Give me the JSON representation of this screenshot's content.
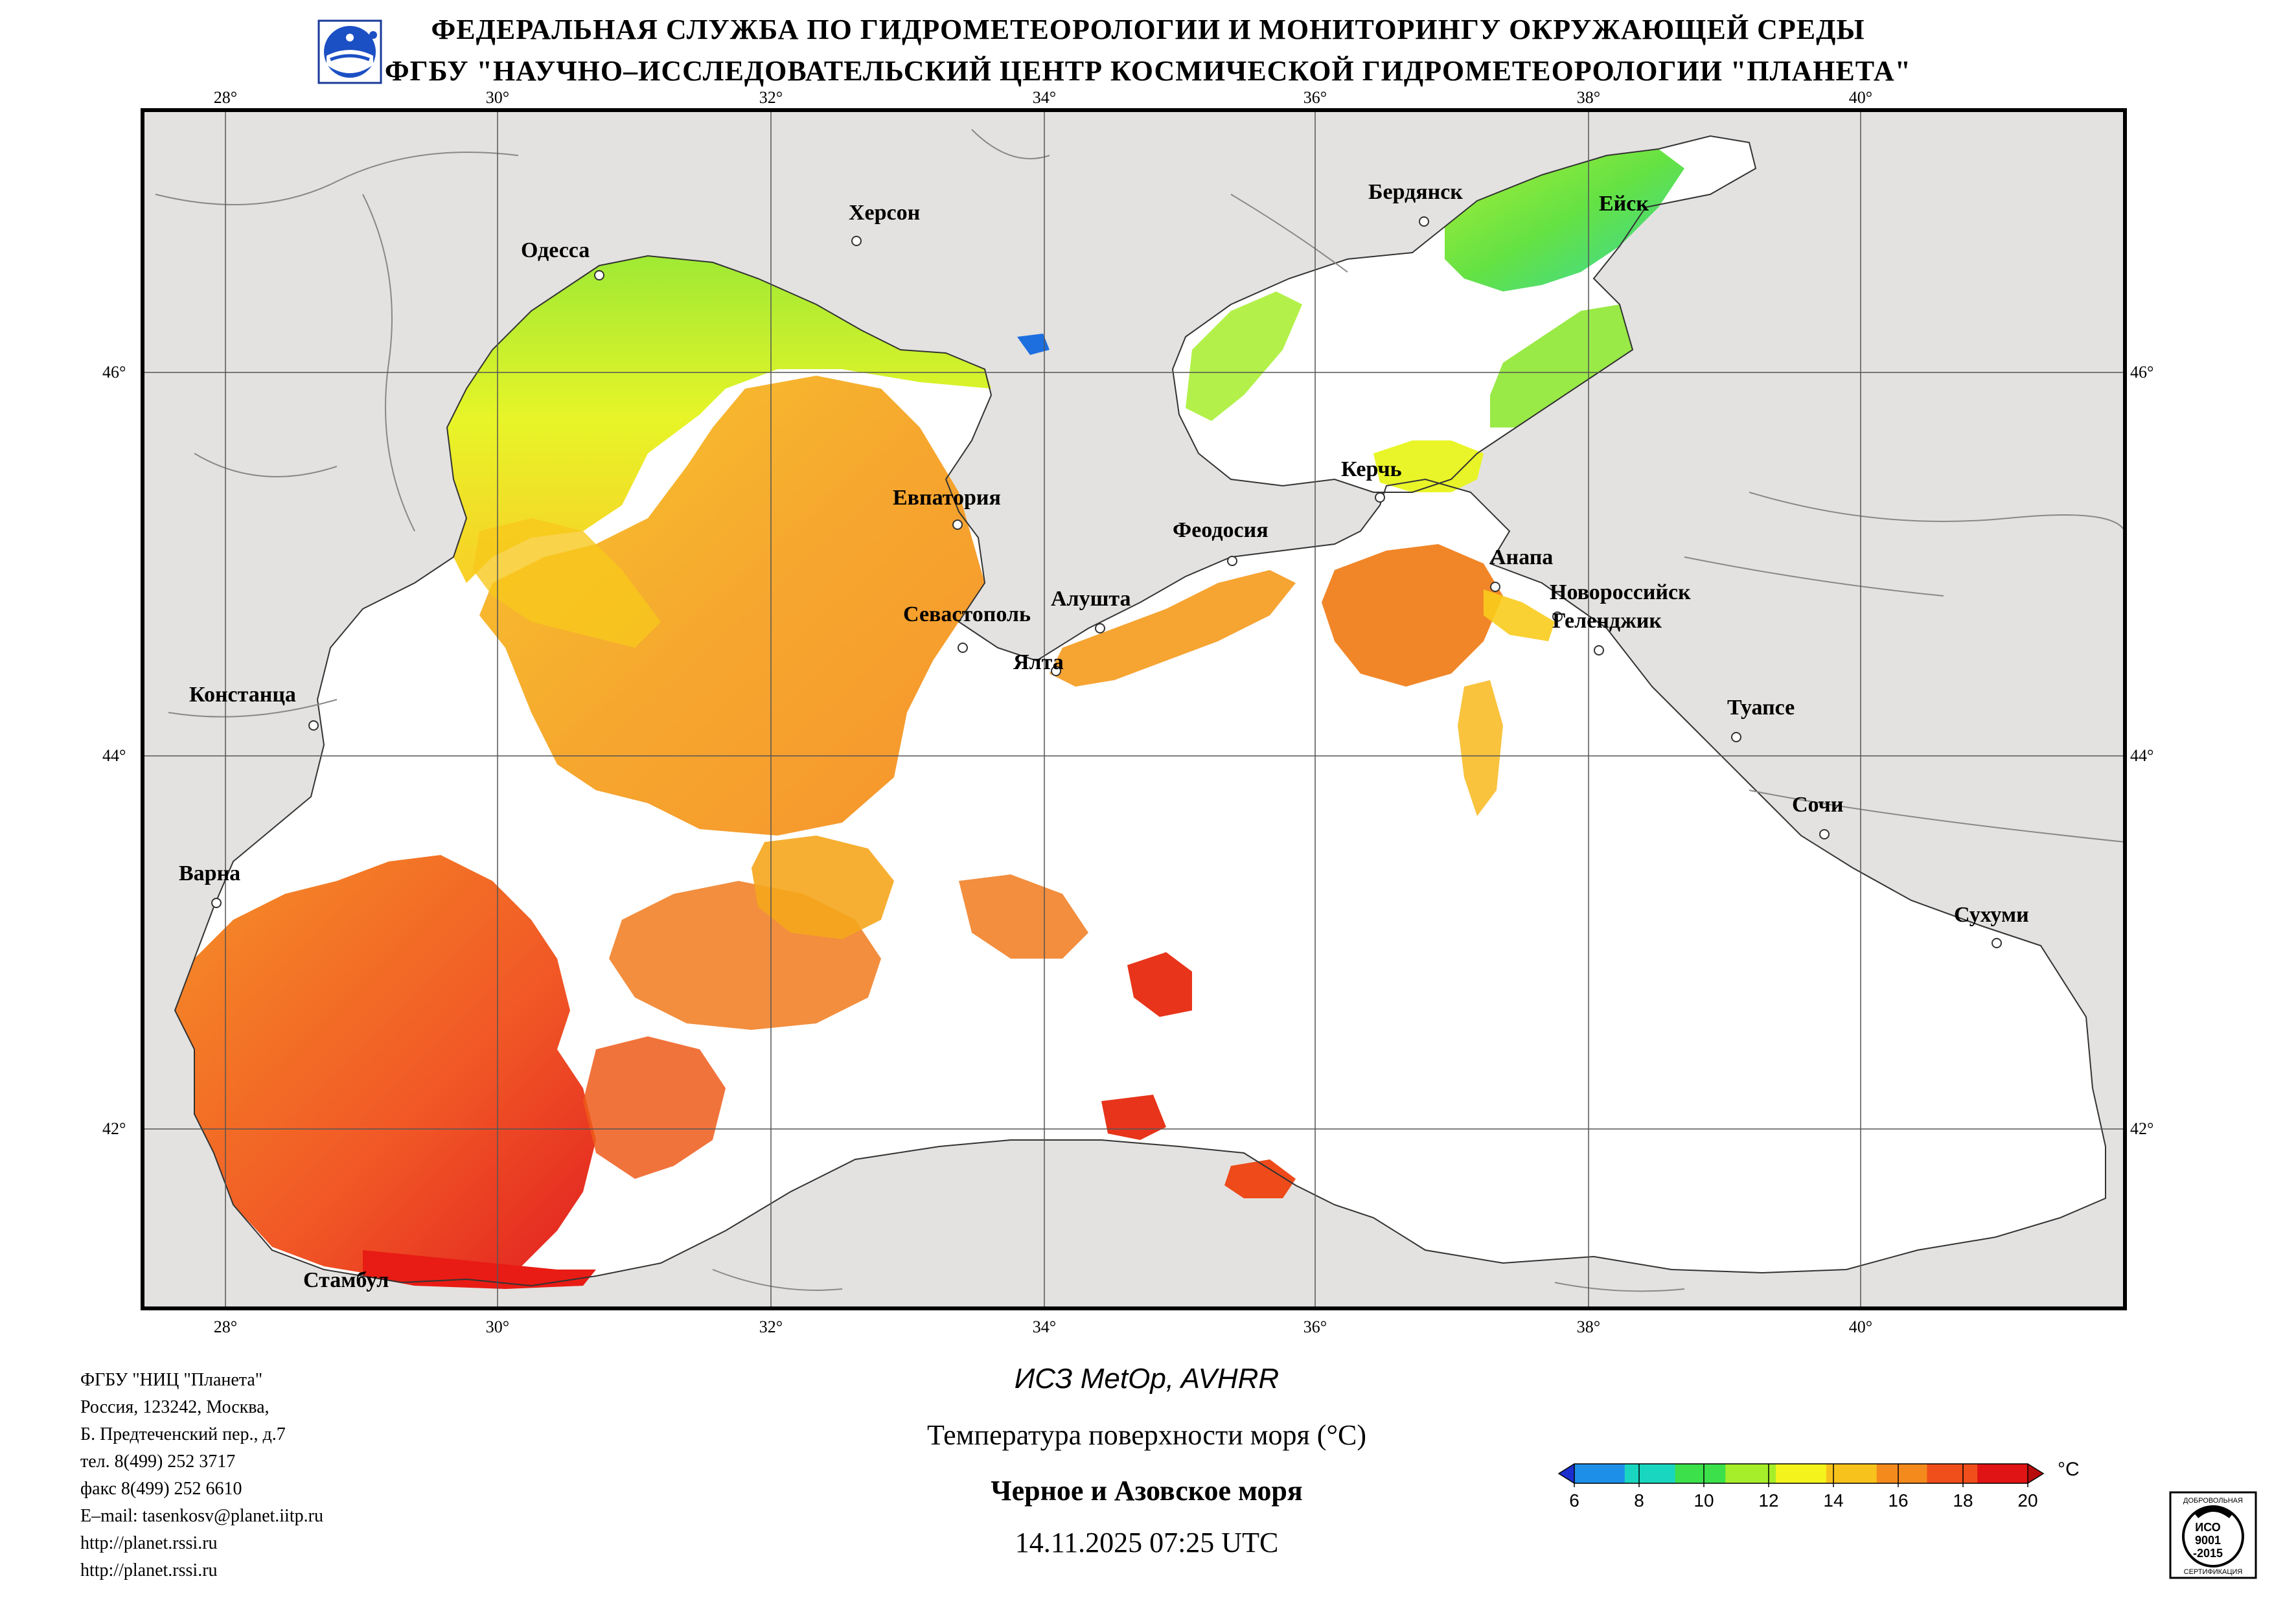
{
  "header": {
    "line1": "ФЕДЕРАЛЬНАЯ СЛУЖБА ПО ГИДРОМЕТЕОРОЛОГИИ И МОНИТОРИНГУ ОКРУЖАЮЩЕЙ СРЕДЫ",
    "line2": "ФГБУ \"НАУЧНО–ИССЛЕДОВАТЕЛЬСКИЙ ЦЕНТР КОСМИЧЕСКОЙ ГИДРОМЕТЕОРОЛОГИИ \"ПЛАНЕТА\"",
    "logo_icon": "planeta-logo-icon"
  },
  "map": {
    "lon_labels": [
      "28°",
      "30°",
      "32°",
      "34°",
      "36°",
      "38°",
      "40°"
    ],
    "lat_labels": [
      "46°",
      "44°",
      "42°"
    ],
    "cities": {
      "odessa": "Одесса",
      "kherson": "Херсон",
      "berdyansk": "Бердянск",
      "yeysk": "Ейск",
      "yevpatoria": "Евпатория",
      "kerch": "Керчь",
      "feodosia": "Феодосия",
      "anapa": "Анапа",
      "novorossiysk": "Новороссийск",
      "gelendzhik": "Геленджик",
      "sevastopol": "Севастополь",
      "alushta": "Алушта",
      "yalta": "Ялта",
      "constanta": "Констанца",
      "tuapse": "Туапсе",
      "sochi": "Сочи",
      "varna": "Варна",
      "sukhumi": "Сухуми",
      "istanbul": "Стамбул"
    },
    "colors": {
      "land": "#e3e2e0",
      "sea_nodata": "#ffffff",
      "grid": "#555555"
    }
  },
  "info": {
    "org": "ФГБУ \"НИЦ \"Планета\"",
    "addr1": "Россия, 123242, Москва,",
    "addr2": "Б. Предтеченский пер., д.7",
    "phone": "тел. 8(499) 252 3717",
    "fax": "факс 8(499) 252 6610",
    "email": "E–mail: tasenkosv@planet.iitp.ru",
    "url1": "http://planet.rssi.ru",
    "url2": "http://planet.rssi.ru"
  },
  "caption": {
    "satellite": "ИСЗ MetOp, AVHRR",
    "product": "Температура поверхности моря (°C)",
    "region": "Черное и Азовское моря",
    "datetime": "14.11.2025 07:25 UTC"
  },
  "legend": {
    "unit": "°C",
    "ticks": [
      "6",
      "8",
      "10",
      "12",
      "14",
      "16",
      "18",
      "20"
    ],
    "colors": [
      "#1b2fd0",
      "#1d8fe8",
      "#19d6c0",
      "#3ce04a",
      "#a6ee2a",
      "#f4f41c",
      "#f8c21c",
      "#f58a1c",
      "#f04e1a",
      "#e01414",
      "#b80c0c"
    ]
  },
  "badge": {
    "top": "ДОБРОВОЛЬНАЯ",
    "line1": "ИСО",
    "line2": "9001",
    "line3": "-2015",
    "bottom": "СЕРТИФИКАЦИЯ",
    "icon": "iso-9001-certificate-icon"
  }
}
